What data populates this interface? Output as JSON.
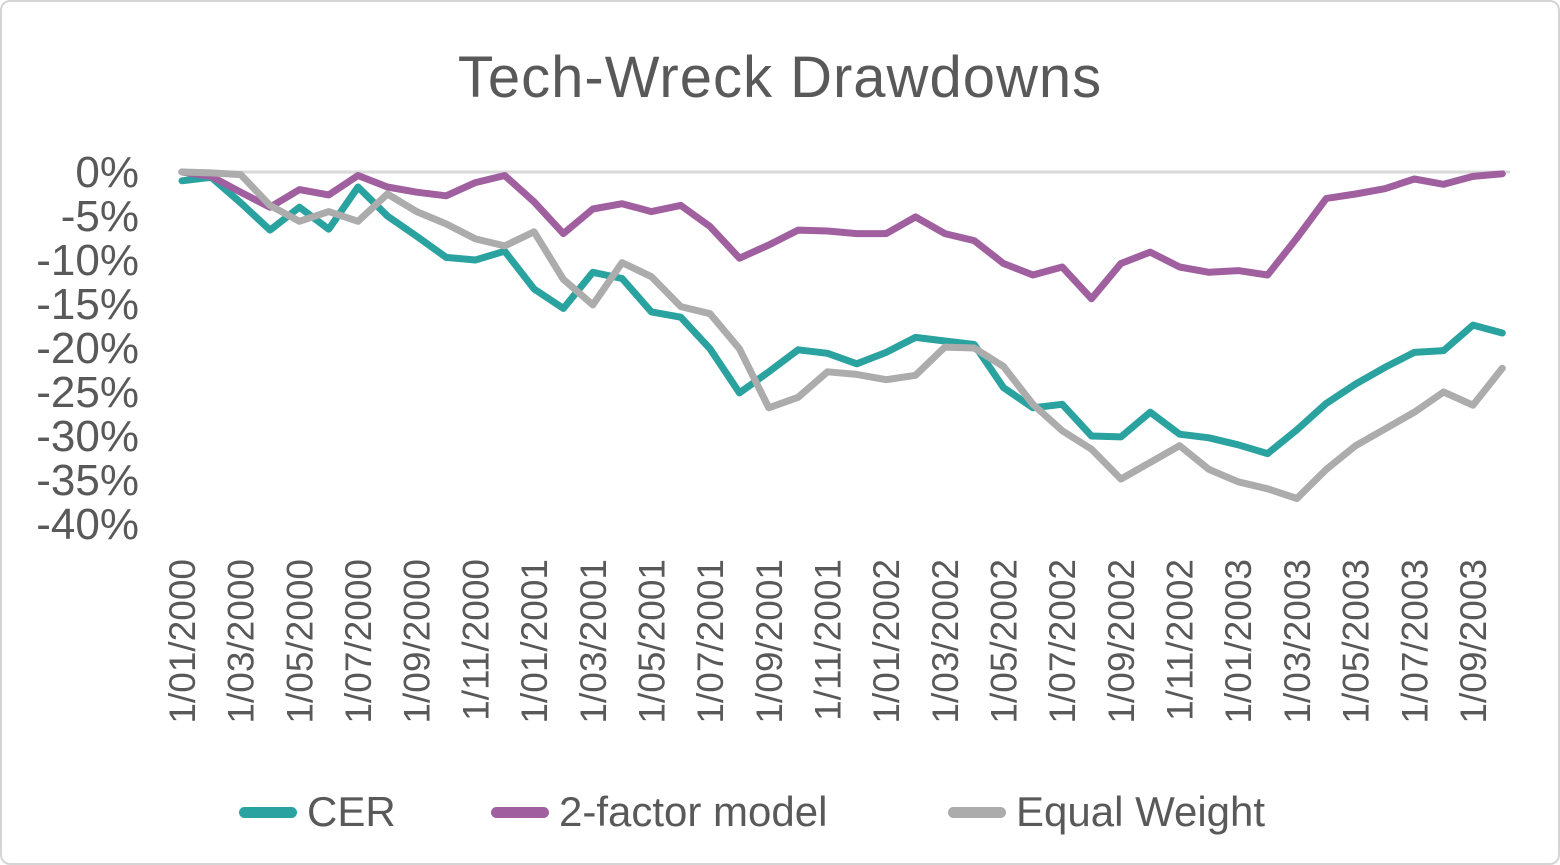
{
  "chart_data": {
    "type": "line",
    "title": "Tech-Wreck Drawdowns",
    "xlabel": "",
    "ylabel": "",
    "ylim": [
      -40,
      0
    ],
    "grid": "zero-line-only",
    "legend_position": "bottom",
    "text_color": "#595959",
    "zero_line_color": "#d9d9d9",
    "y_tick_values": [
      0,
      -5,
      -10,
      -15,
      -20,
      -25,
      -30,
      -35,
      -40
    ],
    "y_tick_labels": [
      "0%",
      "-5%",
      "-10%",
      "-15%",
      "-20%",
      "-25%",
      "-30%",
      "-35%",
      "-40%"
    ],
    "x_tick_every": 2,
    "x_tick_labels": [
      "1/01/2000",
      "1/03/2000",
      "1/05/2000",
      "1/07/2000",
      "1/09/2000",
      "1/11/2000",
      "1/01/2001",
      "1/03/2001",
      "1/05/2001",
      "1/07/2001",
      "1/09/2001",
      "1/11/2001",
      "1/01/2002",
      "1/03/2002",
      "1/05/2002",
      "1/07/2002",
      "1/09/2002",
      "1/11/2002",
      "1/01/2003",
      "1/03/2003",
      "1/05/2003",
      "1/07/2003",
      "1/09/2003"
    ],
    "n_points": 46,
    "series": [
      {
        "name": "CER",
        "color": "#2aa3a0",
        "values": [
          -1.0,
          -0.6,
          -3.5,
          -6.6,
          -4.0,
          -6.5,
          -1.7,
          -5.0,
          -7.3,
          -9.7,
          -10.0,
          -9.0,
          -13.3,
          -15.5,
          -11.4,
          -12.1,
          -15.9,
          -16.5,
          -20.1,
          -25.1,
          -22.7,
          -20.2,
          -20.6,
          -21.8,
          -20.5,
          -18.8,
          -19.2,
          -19.6,
          -24.5,
          -26.8,
          -26.4,
          -30.0,
          -30.1,
          -27.3,
          -29.8,
          -30.2,
          -31.0,
          -32.0,
          -29.3,
          -26.3,
          -24.1,
          -22.2,
          -20.5,
          -20.3,
          -17.4,
          -18.3
        ]
      },
      {
        "name": "2-factor model",
        "color": "#a0609f",
        "values": [
          0.0,
          -0.5,
          -2.3,
          -4.0,
          -2.0,
          -2.6,
          -0.4,
          -1.7,
          -2.3,
          -2.7,
          -1.2,
          -0.4,
          -3.4,
          -7.0,
          -4.2,
          -3.6,
          -4.5,
          -3.8,
          -6.2,
          -9.8,
          -8.3,
          -6.6,
          -6.7,
          -7.0,
          -7.0,
          -5.1,
          -7.0,
          -7.8,
          -10.4,
          -11.7,
          -10.8,
          -14.4,
          -10.4,
          -9.1,
          -10.8,
          -11.4,
          -11.2,
          -11.7,
          -7.5,
          -3.0,
          -2.5,
          -1.9,
          -0.8,
          -1.4,
          -0.5,
          -0.2
        ]
      },
      {
        "name": "Equal Weight",
        "color": "#acacac",
        "values": [
          0.0,
          -0.1,
          -0.3,
          -3.8,
          -5.6,
          -4.5,
          -5.6,
          -2.5,
          -4.5,
          -5.9,
          -7.6,
          -8.4,
          -6.8,
          -12.2,
          -15.1,
          -10.3,
          -11.9,
          -15.3,
          -16.1,
          -20.1,
          -26.8,
          -25.6,
          -22.7,
          -23.0,
          -23.6,
          -23.1,
          -19.9,
          -20.0,
          -22.1,
          -26.4,
          -29.4,
          -31.5,
          -34.9,
          -33.0,
          -31.1,
          -33.8,
          -35.2,
          -36.0,
          -37.1,
          -33.8,
          -31.1,
          -29.2,
          -27.3,
          -25.0,
          -26.5,
          -22.3
        ]
      }
    ]
  }
}
